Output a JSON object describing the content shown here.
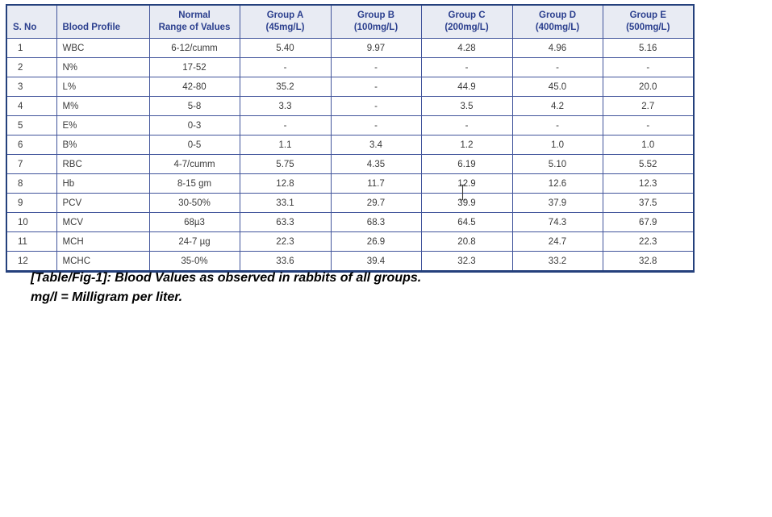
{
  "table": {
    "headers": [
      {
        "lines": [
          "S. No"
        ],
        "align": "left"
      },
      {
        "lines": [
          "Blood Profile"
        ],
        "align": "left"
      },
      {
        "lines": [
          "Normal",
          "Range of Values"
        ],
        "align": "center"
      },
      {
        "lines": [
          "Group A",
          "(45mg/L)"
        ],
        "align": "center"
      },
      {
        "lines": [
          "Group B",
          "(100mg/L)"
        ],
        "align": "center"
      },
      {
        "lines": [
          "Group C",
          "(200mg/L)"
        ],
        "align": "center"
      },
      {
        "lines": [
          "Group D",
          "(400mg/L)"
        ],
        "align": "center"
      },
      {
        "lines": [
          "Group E",
          "(500mg/L)"
        ],
        "align": "center"
      }
    ],
    "rows": [
      [
        "1",
        "WBC",
        "6-12/cumm",
        "5.40",
        "9.97",
        "4.28",
        "4.96",
        "5.16"
      ],
      [
        "2",
        "N%",
        "17-52",
        "-",
        "-",
        "-",
        "-",
        "-"
      ],
      [
        "3",
        "L%",
        "42-80",
        "35.2",
        "-",
        "44.9",
        "45.0",
        "20.0"
      ],
      [
        "4",
        "M%",
        "5-8",
        "3.3",
        "-",
        "3.5",
        "4.2",
        "2.7"
      ],
      [
        "5",
        "E%",
        "0-3",
        "-",
        "-",
        "-",
        "-",
        "-"
      ],
      [
        "6",
        "B%",
        "0-5",
        "1.1",
        "3.4",
        "1.2",
        "1.0",
        "1.0"
      ],
      [
        "7",
        "RBC",
        "4-7/cumm",
        "5.75",
        "4.35",
        "6.19",
        "5.10",
        "5.52"
      ],
      [
        "8",
        "Hb",
        "8-15 gm",
        "12.8",
        "11.7",
        "12.9",
        "12.6",
        "12.3"
      ],
      [
        "9",
        "PCV",
        "30-50%",
        "33.1",
        "29.7",
        "39.9",
        "37.9",
        "37.5"
      ],
      [
        "10",
        "MCV",
        "68µ3",
        "63.3",
        "68.3",
        "64.5",
        "74.3",
        "67.9"
      ],
      [
        "11",
        "MCH",
        "24-7 µg",
        "22.3",
        "26.9",
        "20.8",
        "24.7",
        "22.3"
      ],
      [
        "12",
        "MCHC",
        "35-0%",
        "33.6",
        "39.4",
        "32.3",
        "33.2",
        "32.8"
      ]
    ]
  },
  "caption": {
    "line1": "[Table/Fig-1]: Blood Values as observed in rabbits of all groups.",
    "line2": "mg/l = Milligram per liter."
  },
  "artifacts": {
    "cursor_icon": "i-beam-text-cursor"
  },
  "colors": {
    "header_bg": "#e8ebf3",
    "header_text": "#2b3f8e",
    "grid_line": "#41549b",
    "outer_border": "#24407c",
    "body_text": "#3a3a3a",
    "caption_text": "#000000"
  }
}
